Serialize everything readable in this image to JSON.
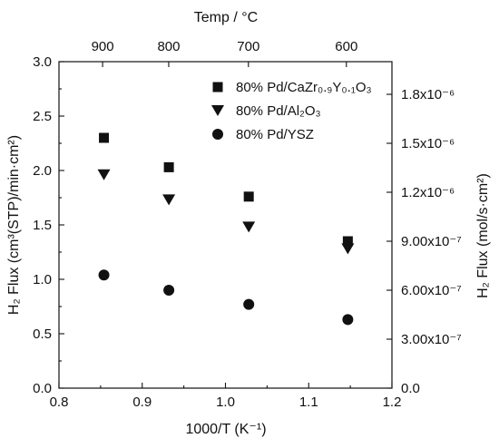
{
  "chart_data": {
    "type": "scatter",
    "xlabel": "1000/T (K⁻¹)",
    "ylabel": "H₂ Flux (cm³(STP)/min·cm²)",
    "y2label": "H₂ Flux (mol/s·cm²)",
    "x2label": "Temp / °C",
    "xlim": [
      0.8,
      1.2
    ],
    "ylim": [
      0.0,
      3.0
    ],
    "xticks": [
      "0.8",
      "0.9",
      "1.0",
      "1.1",
      "1.2"
    ],
    "yticks": [
      "0.0",
      "0.5",
      "1.0",
      "1.5",
      "2.0",
      "2.5",
      "3.0"
    ],
    "y2ticks": [
      {
        "label": "0.0",
        "value": 0.0
      },
      {
        "label": "3.00x10⁻⁷",
        "value": 3e-07
      },
      {
        "label": "6.00x10⁻⁷",
        "value": 6e-07
      },
      {
        "label": "9.00x10⁻⁷",
        "value": 9e-07
      },
      {
        "label": "1.2x10⁻⁶",
        "value": 1.2e-06
      },
      {
        "label": "1.5x10⁻⁶",
        "value": 1.5e-06
      },
      {
        "label": "1.8x10⁻⁶",
        "value": 1.8e-06
      }
    ],
    "y2lim": [
      0.0,
      2e-06
    ],
    "x2ticks": [
      {
        "label": "900",
        "value": 900
      },
      {
        "label": "800",
        "value": 800
      },
      {
        "label": "700",
        "value": 700
      },
      {
        "label": "600",
        "value": 600
      }
    ],
    "legend_position": "top-right",
    "series": [
      {
        "name": "80% Pd/CaZr₀.₉Y₀.₁O₃",
        "marker": "square",
        "x": [
          0.854,
          0.932,
          1.028,
          1.147
        ],
        "y": [
          2.3,
          2.03,
          1.76,
          1.35
        ]
      },
      {
        "name": "80% Pd/Al₂O₃",
        "marker": "triangle-down",
        "x": [
          0.854,
          0.932,
          1.028,
          1.147
        ],
        "y": [
          1.96,
          1.73,
          1.48,
          1.28
        ]
      },
      {
        "name": "80% Pd/YSZ",
        "marker": "circle",
        "x": [
          0.854,
          0.932,
          1.028,
          1.147
        ],
        "y": [
          1.04,
          0.9,
          0.77,
          0.63
        ]
      }
    ]
  }
}
